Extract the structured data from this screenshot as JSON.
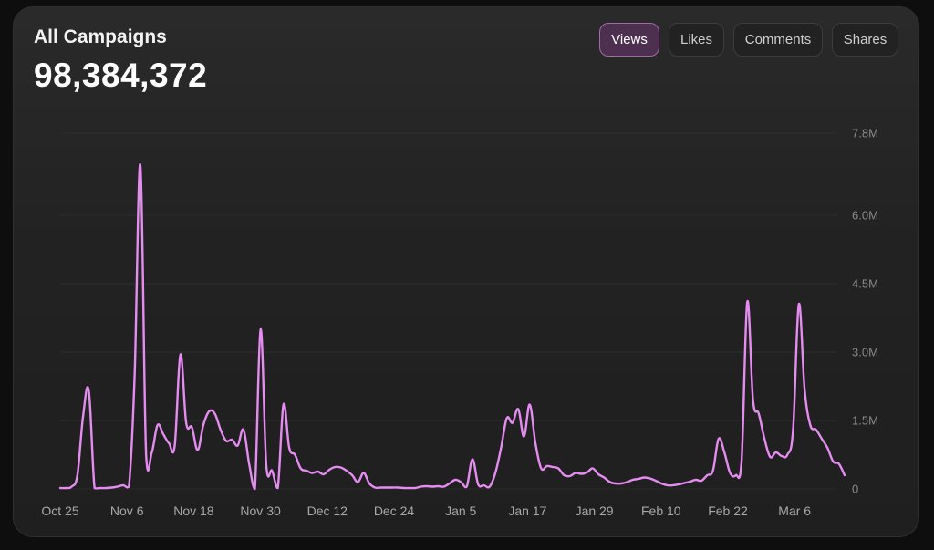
{
  "header": {
    "title": "All Campaigns",
    "total": "98,384,372"
  },
  "tabs": [
    {
      "label": "Views",
      "active": true
    },
    {
      "label": "Likes",
      "active": false
    },
    {
      "label": "Comments",
      "active": false
    },
    {
      "label": "Shares",
      "active": false
    }
  ],
  "colors": {
    "line": "#e58cf0",
    "active_tab": "#4d3050",
    "grid": "#2e2e2e"
  },
  "chart_data": {
    "type": "line",
    "title": "",
    "xlabel": "",
    "ylabel": "",
    "x_tick_labels": [
      "Oct 25",
      "Nov 6",
      "Nov 18",
      "Nov 30",
      "Dec 12",
      "Dec 24",
      "Jan 5",
      "Jan 17",
      "Jan 29",
      "Feb 10",
      "Feb 22",
      "Mar 6"
    ],
    "y_tick_labels": [
      "0",
      "1.5M",
      "3.0M",
      "4.5M",
      "6.0M",
      "7.8M"
    ],
    "y_ticks": [
      0,
      1.5,
      3.0,
      4.5,
      6.0,
      7.8
    ],
    "ylim": [
      0,
      7.8
    ],
    "y_unit": "M",
    "grid": true,
    "series": [
      {
        "values": [
          0.02,
          0.02,
          0.05,
          0.3,
          1.6,
          2.15,
          0.02,
          0.02,
          0.02,
          0.03,
          0.05,
          0.08,
          0.05,
          2.5,
          7.1,
          0.75,
          0.8,
          1.4,
          1.2,
          1.0,
          0.95,
          2.95,
          1.45,
          1.35,
          0.85,
          1.4,
          1.7,
          1.65,
          1.3,
          1.05,
          1.08,
          0.95,
          1.3,
          0.55,
          0.0,
          3.5,
          0.5,
          0.4,
          0.02,
          1.85,
          0.9,
          0.75,
          0.45,
          0.4,
          0.35,
          0.38,
          0.32,
          0.42,
          0.48,
          0.47,
          0.4,
          0.3,
          0.15,
          0.35,
          0.12,
          0.03,
          0.03,
          0.03,
          0.03,
          0.03,
          0.02,
          0.02,
          0.02,
          0.05,
          0.06,
          0.05,
          0.06,
          0.05,
          0.12,
          0.2,
          0.15,
          0.05,
          0.65,
          0.1,
          0.08,
          0.05,
          0.35,
          0.9,
          1.55,
          1.45,
          1.75,
          1.15,
          1.85,
          1.0,
          0.45,
          0.5,
          0.48,
          0.45,
          0.3,
          0.28,
          0.35,
          0.33,
          0.36,
          0.45,
          0.32,
          0.25,
          0.15,
          0.12,
          0.12,
          0.15,
          0.2,
          0.22,
          0.25,
          0.23,
          0.18,
          0.12,
          0.08,
          0.08,
          0.1,
          0.13,
          0.16,
          0.2,
          0.18,
          0.3,
          0.4,
          1.1,
          0.8,
          0.35,
          0.3,
          0.6,
          4.1,
          1.95,
          1.65,
          1.1,
          0.7,
          0.8,
          0.72,
          0.75,
          1.3,
          4.05,
          2.2,
          1.4,
          1.3,
          1.1,
          0.9,
          0.6,
          0.55,
          0.3
        ]
      }
    ]
  }
}
